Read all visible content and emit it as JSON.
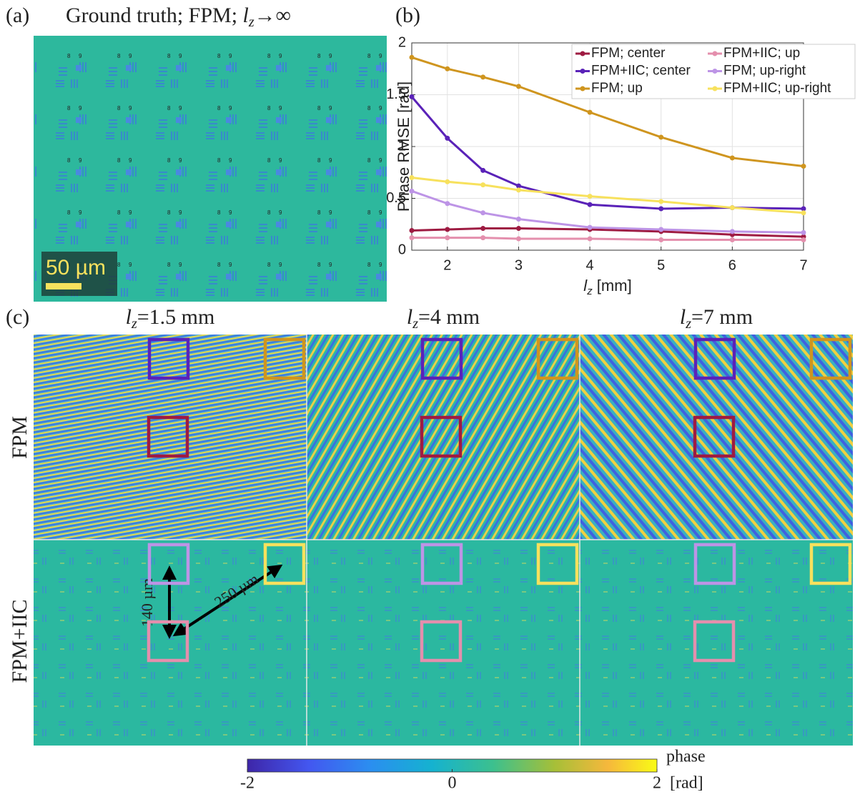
{
  "panel_a": {
    "label": "(a)",
    "title_parts": [
      "Ground truth; FPM; ",
      "l",
      "z",
      "→∞"
    ],
    "scale_bar": "50 µm"
  },
  "chart_data": {
    "type": "line",
    "panel_label": "(b)",
    "ylabel": "Phase RMSE [rad]",
    "xlabel_parts": [
      "l",
      "z",
      " [mm]"
    ],
    "x": [
      1.5,
      2,
      2.5,
      3,
      4,
      5,
      6,
      7
    ],
    "xlim": [
      1.5,
      7
    ],
    "xticks": [
      2,
      3,
      4,
      5,
      6,
      7
    ],
    "ylim": [
      0,
      2
    ],
    "yticks": [
      0,
      0.5,
      1,
      1.5,
      2
    ],
    "grid": true,
    "legend": "upper right",
    "series": [
      {
        "name": "FPM; center",
        "color": "#9e1b42",
        "values": [
          0.19,
          0.2,
          0.21,
          0.21,
          0.2,
          0.18,
          0.15,
          0.13
        ]
      },
      {
        "name": "FPM+IIC; center",
        "color": "#5a22b8",
        "values": [
          1.48,
          1.08,
          0.77,
          0.62,
          0.44,
          0.4,
          0.41,
          0.4
        ]
      },
      {
        "name": "FPM; up",
        "color": "#cf951f",
        "values": [
          1.86,
          1.75,
          1.67,
          1.58,
          1.33,
          1.09,
          0.89,
          0.81
        ]
      },
      {
        "name": "FPM+IIC; up",
        "color": "#e48fad",
        "values": [
          0.12,
          0.12,
          0.12,
          0.11,
          0.11,
          0.1,
          0.1,
          0.1
        ]
      },
      {
        "name": "FPM; up-right",
        "color": "#bd94e6",
        "values": [
          0.57,
          0.45,
          0.36,
          0.3,
          0.22,
          0.2,
          0.18,
          0.17
        ]
      },
      {
        "name": "FPM+IIC; up-right",
        "color": "#f7e15d",
        "values": [
          0.7,
          0.66,
          0.63,
          0.58,
          0.52,
          0.47,
          0.41,
          0.36
        ]
      }
    ]
  },
  "panel_c": {
    "label": "(c)",
    "columns": [
      [
        "l",
        "z",
        "=1.5 mm"
      ],
      [
        "l",
        "z",
        "=4 mm"
      ],
      [
        "l",
        "z",
        "=7 mm"
      ]
    ],
    "rows": [
      "FPM",
      "FPM+IIC"
    ],
    "annotations": [
      "140 µm",
      "250 µm"
    ]
  },
  "colorbar": {
    "lim": [
      -2,
      2
    ],
    "ticks": [
      -2,
      0,
      2
    ],
    "label": "phase",
    "unit": "[rad]"
  }
}
